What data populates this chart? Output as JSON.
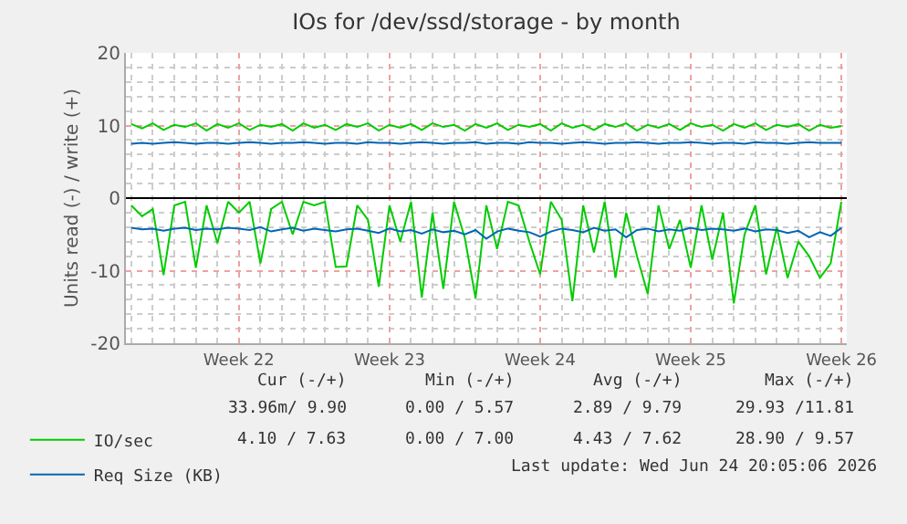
{
  "chart_data": {
    "type": "line",
    "title": "IOs for /dev/ssd/storage - by month",
    "ylabel": "Units read (-) / write (+)",
    "categories": [
      null,
      null,
      null,
      null,
      null,
      null,
      null,
      null,
      null,
      null,
      "Week 22",
      null,
      null,
      null,
      null,
      null,
      null,
      null,
      null,
      null,
      null,
      null,
      null,
      null,
      "Week 23",
      null,
      null,
      null,
      null,
      null,
      null,
      null,
      null,
      null,
      null,
      null,
      null,
      null,
      "Week 24",
      null,
      null,
      null,
      null,
      null,
      null,
      null,
      null,
      null,
      null,
      null,
      null,
      null,
      "Week 25",
      null,
      null,
      null,
      null,
      null,
      null,
      null,
      null,
      null,
      null,
      null,
      null,
      null,
      "Week 26"
    ],
    "series": [
      {
        "name": "IO/sec",
        "color": "#00cc00",
        "values": [
          10.2,
          9.6,
          10.3,
          9.4,
          10.1,
          9.8,
          10.3,
          9.3,
          10.2,
          9.7,
          10.3,
          9.4,
          10.1,
          9.8,
          10.2,
          9.3,
          10.3,
          9.7,
          10.1,
          9.4,
          10.2,
          9.8,
          10.3,
          9.3,
          10.1,
          9.7,
          10.2,
          9.4,
          10.3,
          9.8,
          10.1,
          9.3,
          10.2,
          9.7,
          10.3,
          9.4,
          10.1,
          9.8,
          10.2,
          9.3,
          10.3,
          9.7,
          10.1,
          9.4,
          10.2,
          9.8,
          10.3,
          9.3,
          10.1,
          9.7,
          10.2,
          9.4,
          10.3,
          9.8,
          10.1,
          9.3,
          10.2,
          9.7,
          10.3,
          9.4,
          10.1,
          9.8,
          10.2,
          9.3,
          10.1,
          9.7,
          9.9
        ]
      },
      {
        "color": "#00cc00",
        "values": [
          -1.0,
          -2.5,
          -1.5,
          -10.6,
          -1.0,
          -0.5,
          -9.6,
          -1.0,
          -6.2,
          -0.5,
          -2.0,
          -0.5,
          -9.0,
          -1.5,
          -0.5,
          -5.0,
          -0.5,
          -1.0,
          -0.5,
          -9.5,
          -9.4,
          -1.0,
          -3.0,
          -12.2,
          -1.0,
          -6.0,
          -0.5,
          -13.7,
          -2.0,
          -12.5,
          -0.5,
          -5.5,
          -13.8,
          -1.0,
          -7.0,
          -0.5,
          -1.0,
          -6.0,
          -10.5,
          -0.5,
          -3.0,
          -14.2,
          -1.0,
          -7.5,
          -0.5,
          -11.0,
          -2.0,
          -8.0,
          -13.2,
          -1.0,
          -7.0,
          -3.0,
          -9.6,
          -1.0,
          -8.5,
          -2.0,
          -14.5,
          -5.0,
          -1.0,
          -10.5,
          -4.0,
          -11.0,
          -6.0,
          -8.0,
          -11.0,
          -9.0,
          -0.5
        ]
      },
      {
        "name": "Req Size (KB)",
        "color": "#0066b3",
        "values": [
          7.5,
          7.6,
          7.5,
          7.6,
          7.7,
          7.6,
          7.5,
          7.6,
          7.6,
          7.5,
          7.6,
          7.7,
          7.6,
          7.5,
          7.6,
          7.6,
          7.7,
          7.6,
          7.5,
          7.6,
          7.6,
          7.5,
          7.7,
          7.6,
          7.6,
          7.5,
          7.6,
          7.7,
          7.6,
          7.5,
          7.6,
          7.6,
          7.7,
          7.5,
          7.6,
          7.6,
          7.5,
          7.7,
          7.6,
          7.6,
          7.5,
          7.6,
          7.7,
          7.6,
          7.5,
          7.6,
          7.6,
          7.7,
          7.6,
          7.5,
          7.6,
          7.6,
          7.7,
          7.6,
          7.5,
          7.6,
          7.6,
          7.5,
          7.7,
          7.6,
          7.6,
          7.5,
          7.6,
          7.7,
          7.6,
          7.6,
          7.6
        ]
      },
      {
        "color": "#0066b3",
        "values": [
          -4.1,
          -4.3,
          -4.2,
          -4.5,
          -4.2,
          -4.1,
          -4.4,
          -4.2,
          -4.3,
          -4.1,
          -4.2,
          -4.4,
          -4.0,
          -4.6,
          -4.3,
          -4.1,
          -4.5,
          -4.2,
          -4.4,
          -4.6,
          -4.3,
          -4.2,
          -4.5,
          -4.8,
          -4.2,
          -4.6,
          -4.4,
          -4.9,
          -4.3,
          -4.7,
          -4.5,
          -5.0,
          -4.4,
          -5.6,
          -4.6,
          -4.2,
          -4.5,
          -4.7,
          -5.3,
          -4.6,
          -4.2,
          -4.4,
          -4.7,
          -4.1,
          -4.5,
          -4.3,
          -5.4,
          -4.4,
          -4.2,
          -4.6,
          -4.3,
          -4.5,
          -4.1,
          -4.4,
          -4.2,
          -4.3,
          -4.5,
          -4.2,
          -4.6,
          -4.3,
          -4.4,
          -4.8,
          -4.5,
          -5.4,
          -4.7,
          -5.2,
          -4.1
        ]
      }
    ],
    "ylim": [
      -20,
      20
    ],
    "yticks": [
      -20,
      -10,
      0,
      10,
      20
    ],
    "ref_lines": [
      {
        "axis": "y",
        "value": 0,
        "color": "#000000"
      }
    ],
    "grid": true,
    "legend": "bottom",
    "marker": "none",
    "line_style": "solid",
    "annotations": [
      "Cur (-/+)",
      "Min (-/+)",
      "Avg (-/+)",
      "Max (-/+)",
      "33.96m/ 9.90",
      "0.00 / 5.57",
      "2.89 / 9.79",
      "29.93 /11.81",
      "4.10 / 7.63",
      "0.00 / 7.00",
      "4.43 / 7.62",
      "28.90 / 9.57",
      "Last update: Wed Jun 24 20:05:06 2026"
    ]
  }
}
